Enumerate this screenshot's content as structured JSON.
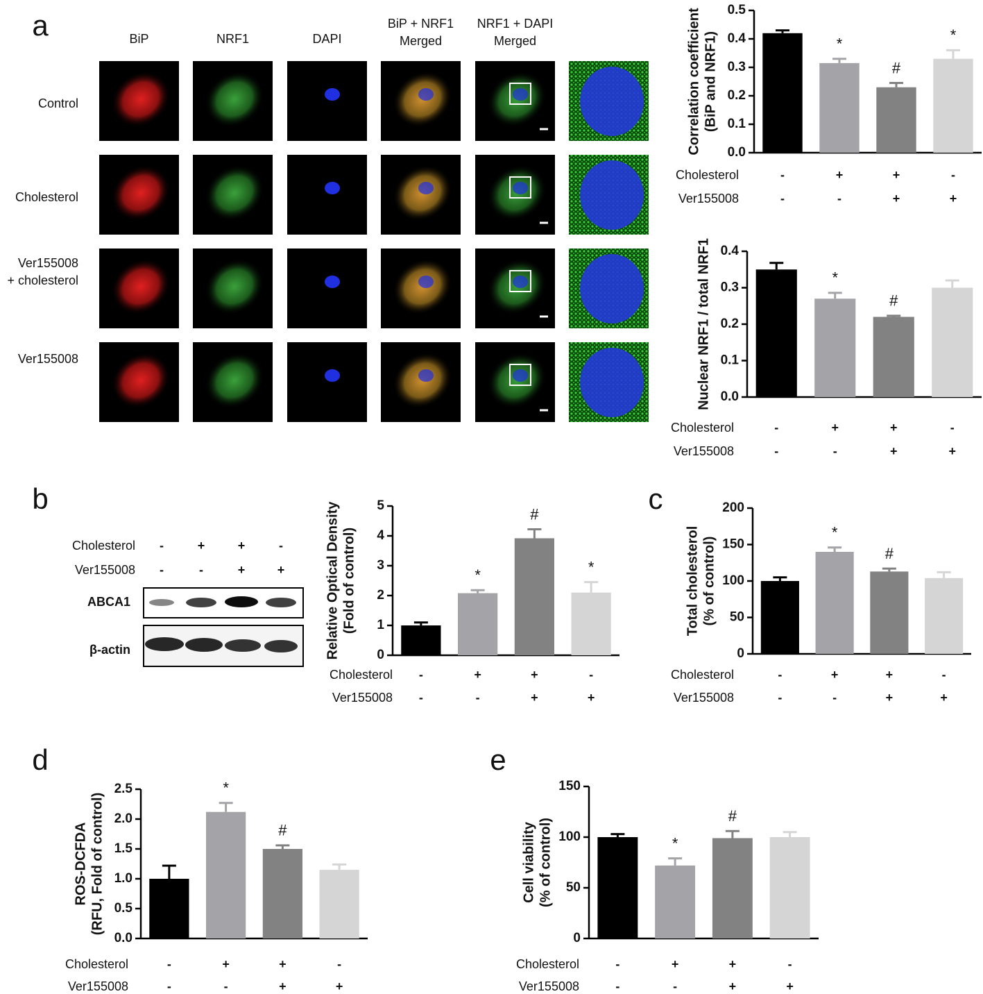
{
  "panel_labels": [
    "a",
    "b",
    "c",
    "d",
    "e"
  ],
  "microscopy": {
    "columns": [
      [
        "BiP"
      ],
      [
        "NRF1"
      ],
      [
        "DAPI"
      ],
      [
        "BiP + NRF1",
        "Merged"
      ],
      [
        "NRF1 + DAPI",
        "Merged"
      ]
    ],
    "rows": [
      [
        "Control"
      ],
      [
        "Cholesterol"
      ],
      [
        "Ver155008",
        "+ cholesterol"
      ],
      [
        "Ver155008"
      ]
    ]
  },
  "blot": {
    "conditions": [
      {
        "name": "Cholesterol",
        "marks": [
          "-",
          "+",
          "+",
          "-"
        ]
      },
      {
        "name": "Ver155008",
        "marks": [
          "-",
          "-",
          "+",
          "+"
        ]
      }
    ],
    "bands": [
      "ABCA1",
      "β-actin"
    ]
  },
  "chart_data": [
    {
      "type": "bar",
      "ylabel": [
        "Correlation coefficient",
        "(BiP and NRF1)"
      ],
      "values": [
        0.42,
        0.315,
        0.23,
        0.33
      ],
      "errors": [
        0.01,
        0.015,
        0.015,
        0.03
      ],
      "annotations": [
        null,
        "*",
        "#",
        "*"
      ],
      "colors": [
        "#000000",
        "#a3a3a8",
        "#828282",
        "#d5d5d5"
      ],
      "conditions": [
        {
          "name": "Cholesterol",
          "marks": [
            "-",
            "+",
            "+",
            "-"
          ]
        },
        {
          "name": "Ver155008",
          "marks": [
            "-",
            "-",
            "+",
            "+"
          ]
        }
      ],
      "ylim": [
        0,
        0.5
      ],
      "yticks": [
        {
          "value": 0,
          "label": "0.0"
        },
        0.1,
        0.2,
        0.3,
        0.4,
        0.5
      ]
    },
    {
      "type": "bar",
      "ylabel": [
        "Nuclear NRF1 / total NRF1"
      ],
      "values": [
        0.35,
        0.27,
        0.22,
        0.3
      ],
      "errors": [
        0.018,
        0.016,
        0.003,
        0.02
      ],
      "annotations": [
        null,
        "*",
        "#",
        null
      ],
      "colors": [
        "#000000",
        "#a3a3a8",
        "#828282",
        "#d5d5d5"
      ],
      "conditions": [
        {
          "name": "Cholesterol",
          "marks": [
            "-",
            "+",
            "+",
            "-"
          ]
        },
        {
          "name": "Ver155008",
          "marks": [
            "-",
            "-",
            "+",
            "+"
          ]
        }
      ],
      "ylim": [
        0,
        0.4
      ],
      "yticks": [
        {
          "value": 0,
          "label": "0.0"
        },
        0.1,
        0.2,
        0.3,
        0.4
      ]
    },
    {
      "type": "bar",
      "ylabel": [
        "Relative Optical Density",
        "(Fold of control)"
      ],
      "values": [
        1.0,
        2.08,
        3.92,
        2.1
      ],
      "errors": [
        0.1,
        0.1,
        0.3,
        0.35
      ],
      "annotations": [
        null,
        "*",
        "#",
        "*"
      ],
      "colors": [
        "#000000",
        "#a3a3a8",
        "#828282",
        "#d5d5d5"
      ],
      "conditions": [
        {
          "name": "Cholesterol",
          "marks": [
            "-",
            "+",
            "+",
            "-"
          ]
        },
        {
          "name": "Ver155008",
          "marks": [
            "-",
            "-",
            "+",
            "+"
          ]
        }
      ],
      "ylim": [
        0,
        5
      ],
      "yticks": [
        0,
        1,
        2,
        3,
        4,
        5
      ]
    },
    {
      "type": "bar",
      "ylabel": [
        "Total cholesterol",
        "(% of control)"
      ],
      "values": [
        100,
        140,
        113,
        104
      ],
      "errors": [
        5,
        6,
        4,
        8
      ],
      "annotations": [
        null,
        "*",
        "#",
        null
      ],
      "colors": [
        "#000000",
        "#a3a3a8",
        "#828282",
        "#d5d5d5"
      ],
      "conditions": [
        {
          "name": "Cholesterol",
          "marks": [
            "-",
            "+",
            "+",
            "-"
          ]
        },
        {
          "name": "Ver155008",
          "marks": [
            "-",
            "-",
            "+",
            "+"
          ]
        }
      ],
      "ylim": [
        0,
        200
      ],
      "yticks": [
        0,
        50,
        100,
        150,
        200
      ]
    },
    {
      "type": "bar",
      "ylabel": [
        "ROS-DCFDA",
        "(RFU, Fold of control)"
      ],
      "values": [
        1.0,
        2.12,
        1.5,
        1.15
      ],
      "errors": [
        0.22,
        0.15,
        0.06,
        0.09
      ],
      "annotations": [
        null,
        "*",
        "#",
        null
      ],
      "colors": [
        "#000000",
        "#a3a3a8",
        "#828282",
        "#d5d5d5"
      ],
      "conditions": [
        {
          "name": "Cholesterol",
          "marks": [
            "-",
            "+",
            "+",
            "-"
          ]
        },
        {
          "name": "Ver155008",
          "marks": [
            "-",
            "-",
            "+",
            "+"
          ]
        }
      ],
      "ylim": [
        0,
        2.5
      ],
      "yticks": [
        {
          "value": 0,
          "label": "0.0"
        },
        0.5,
        {
          "value": 1,
          "label": "1.0"
        },
        1.5,
        {
          "value": 2,
          "label": "2.0"
        },
        2.5
      ]
    },
    {
      "type": "bar",
      "ylabel": [
        "Cell viability",
        "(% of control)"
      ],
      "values": [
        100,
        72,
        99,
        100
      ],
      "errors": [
        3,
        7,
        7,
        5
      ],
      "annotations": [
        null,
        "*",
        "#",
        null
      ],
      "colors": [
        "#000000",
        "#a3a3a8",
        "#828282",
        "#d5d5d5"
      ],
      "conditions": [
        {
          "name": "Cholesterol",
          "marks": [
            "-",
            "+",
            "+",
            "-"
          ]
        },
        {
          "name": "Ver155008",
          "marks": [
            "-",
            "-",
            "+",
            "+"
          ]
        }
      ],
      "ylim": [
        0,
        150
      ],
      "yticks": [
        0,
        50,
        100,
        150
      ]
    }
  ]
}
